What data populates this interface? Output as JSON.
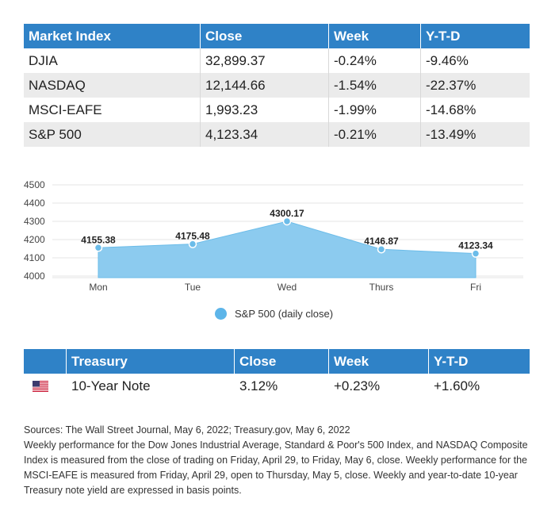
{
  "market": {
    "headers": [
      "Market Index",
      "Close",
      "Week",
      "Y-T-D"
    ],
    "rows": [
      [
        "DJIA",
        "32,899.37",
        "-0.24%",
        "-9.46%"
      ],
      [
        "NASDAQ",
        "12,144.66",
        "-1.54%",
        "-22.37%"
      ],
      [
        "MSCI-EAFE",
        "1,993.23",
        "-1.99%",
        "-14.68%"
      ],
      [
        "S&P 500",
        "4,123.34",
        "-0.21%",
        "-13.49%"
      ]
    ]
  },
  "chart_data": {
    "type": "area",
    "categories": [
      "Mon",
      "Tue",
      "Wed",
      "Thurs",
      "Fri"
    ],
    "series": [
      {
        "name": "S&P 500 (daily close)",
        "values": [
          4155.38,
          4175.48,
          4300.17,
          4146.87,
          4123.34
        ]
      }
    ],
    "value_labels": [
      "4155.38",
      "4175.48",
      "4300.17",
      "4146.87",
      "4123.34"
    ],
    "yticks": [
      "4500",
      "4400",
      "4300",
      "4200",
      "4100",
      "4000"
    ],
    "ylim": [
      4000,
      4500
    ],
    "grid": true,
    "legend_position": "bottom-center",
    "colors": {
      "fill": "#8ccbef",
      "line": "#6bbce9",
      "point": "#6bbce9"
    }
  },
  "treasury": {
    "flag_icon": "us-flag-icon",
    "headers": [
      "Treasury",
      "Close",
      "Week",
      "Y-T-D"
    ],
    "row": [
      "10-Year Note",
      "3.12%",
      "+0.23%",
      "+1.60%"
    ]
  },
  "notes": {
    "sources": "Sources: The Wall Street Journal, May 6, 2022; Treasury.gov, May 6, 2022",
    "body": "Weekly performance for the Dow Jones Industrial Average, Standard & Poor's 500 Index, and NASDAQ Composite Index is measured from the close of trading on Friday, April 29, to Friday, May 6, close. Weekly performance for the MSCI-EAFE is measured from Friday, April 29, open to Thursday, May 5, close. Weekly and year-to-date 10-year Treasury note yield are expressed in basis points."
  },
  "colors": {
    "header_bg": "#2f82c7",
    "alt_row_bg": "#ebebeb"
  }
}
